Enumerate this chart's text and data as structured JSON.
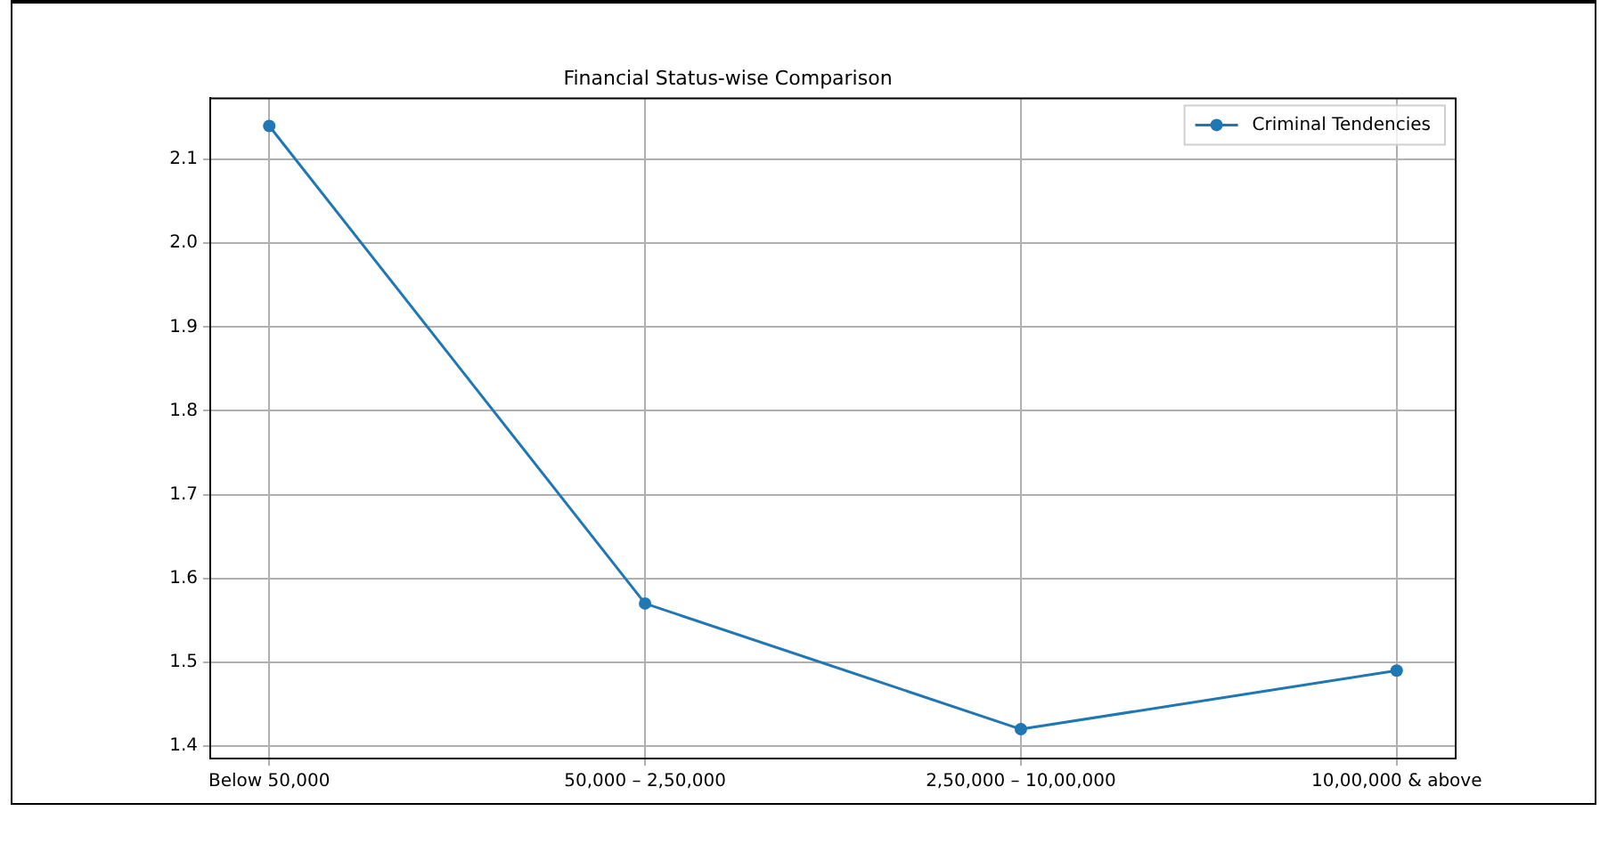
{
  "chart_data": {
    "type": "line",
    "title": "Financial Status-wise Comparison",
    "categories": [
      "Below 50,000",
      "50,000 – 2,50,000",
      "2,50,000 – 10,00,000",
      "10,00,000 & above"
    ],
    "series": [
      {
        "name": "Criminal Tendencies",
        "color": "#1f77b4",
        "values": [
          2.14,
          1.57,
          1.42,
          1.49
        ]
      }
    ],
    "ylim": [
      1.385,
      2.173
    ],
    "yticks": [
      1.4,
      1.5,
      1.6,
      1.7,
      1.8,
      1.9,
      {
        "value": 2.0,
        "label": "2.0"
      },
      2.1
    ],
    "grid": true,
    "legend": "top right",
    "marker": "circle",
    "line_style": "solid"
  }
}
